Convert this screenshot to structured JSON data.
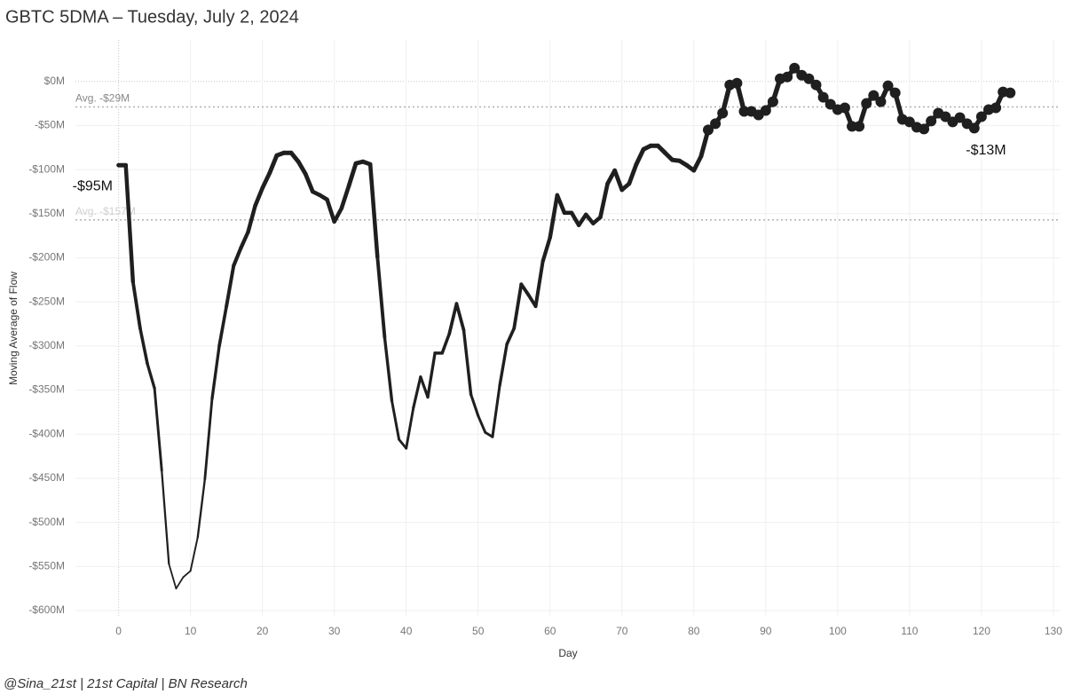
{
  "chart_data": {
    "type": "line",
    "title": "GBTC 5DMA – Tuesday, July 2, 2024",
    "x_label": "Day",
    "y_label": "Moving Average of Flow",
    "footer": "@Sina_21st | 21st Capital | BN Research",
    "xlim": [
      -6,
      131
    ],
    "xticks": [
      0,
      10,
      20,
      30,
      40,
      50,
      60,
      70,
      80,
      90,
      100,
      110,
      120,
      130
    ],
    "ylim": [
      -607,
      47
    ],
    "yticks": [
      {
        "value": 0,
        "label": "$0M"
      },
      {
        "value": -50,
        "label": "-$50M"
      },
      {
        "value": -100,
        "label": "-$100M"
      },
      {
        "value": -150,
        "label": "-$150M"
      },
      {
        "value": -200,
        "label": "-$200M"
      },
      {
        "value": -250,
        "label": "-$250M"
      },
      {
        "value": -300,
        "label": "-$300M"
      },
      {
        "value": -350,
        "label": "-$350M"
      },
      {
        "value": -400,
        "label": "-$400M"
      },
      {
        "value": -450,
        "label": "-$450M"
      },
      {
        "value": -500,
        "label": "-$500M"
      },
      {
        "value": -550,
        "label": "-$550M"
      },
      {
        "value": -600,
        "label": "-$600M"
      }
    ],
    "grid": true,
    "reference_lines": [
      {
        "value": -29,
        "label": "Avg. -$29M"
      },
      {
        "value": -157,
        "label": "Avg. -$157M"
      }
    ],
    "annotations": [
      "-$95M",
      "-$13M"
    ],
    "series": [
      {
        "color": "#1f1f1f",
        "markers": false,
        "x": [
          0,
          1,
          2,
          3,
          4,
          5,
          6,
          7,
          8,
          9,
          10,
          11,
          12,
          13,
          14,
          15,
          16,
          17,
          18,
          19,
          20,
          21,
          22,
          23,
          24,
          25,
          26,
          27,
          28,
          29,
          30,
          31,
          32,
          33,
          34,
          35,
          36,
          37,
          38,
          39,
          40,
          41,
          42,
          43,
          44,
          45,
          46,
          47,
          48,
          49,
          50,
          51,
          52,
          53,
          54,
          55,
          56,
          57,
          58,
          59,
          60,
          61,
          62,
          63,
          64,
          65,
          66,
          67,
          68,
          69,
          70,
          71,
          72,
          73,
          74,
          75,
          76,
          77,
          78,
          79,
          80,
          81,
          82
        ],
        "values": [
          -95,
          -95,
          -227,
          -280,
          -320,
          -348,
          -441,
          -547,
          -575,
          -562,
          -555,
          -517,
          -451,
          -360,
          -300,
          -255,
          -209,
          -189,
          -171,
          -141,
          -121,
          -104,
          -84,
          -81,
          -81,
          -91,
          -105,
          -125,
          -129,
          -134,
          -159,
          -144,
          -119,
          -93,
          -91,
          -94,
          -199,
          -290,
          -362,
          -406,
          -416,
          -370,
          -335,
          -358,
          -308,
          -308,
          -286,
          -252,
          -282,
          -355,
          -379,
          -398,
          -403,
          -345,
          -298,
          -280,
          -230,
          -242,
          -255,
          -204,
          -177,
          -129,
          -149,
          -149,
          -163,
          -151,
          -161,
          -154,
          -116,
          -101,
          -123,
          -116,
          -94,
          -77,
          -73,
          -73,
          -81,
          -89,
          -90,
          -95,
          -101,
          -85,
          -55
        ]
      },
      {
        "color": "#1f1f1f",
        "markers": true,
        "x": [
          82,
          83,
          84,
          85,
          86,
          87,
          88,
          89,
          90,
          91,
          92,
          93,
          94,
          95,
          96,
          97,
          98,
          99,
          100,
          101,
          102,
          103,
          104,
          105,
          106,
          107,
          108,
          109,
          110,
          111,
          112,
          113,
          114,
          115,
          116,
          117,
          118,
          119,
          120,
          121,
          122,
          123,
          124
        ],
        "values": [
          -55,
          -48,
          -36,
          -4,
          -2,
          -34,
          -34,
          -38,
          -33,
          -23,
          3,
          5,
          15,
          7,
          3,
          -4,
          -18,
          -26,
          -32,
          -30,
          -51,
          -51,
          -25,
          -16,
          -23,
          -5,
          -13,
          -43,
          -46,
          -52,
          -54,
          -45,
          -36,
          -40,
          -46,
          -41,
          -48,
          -53,
          -40,
          -32,
          -30,
          -12,
          -13
        ]
      }
    ]
  }
}
